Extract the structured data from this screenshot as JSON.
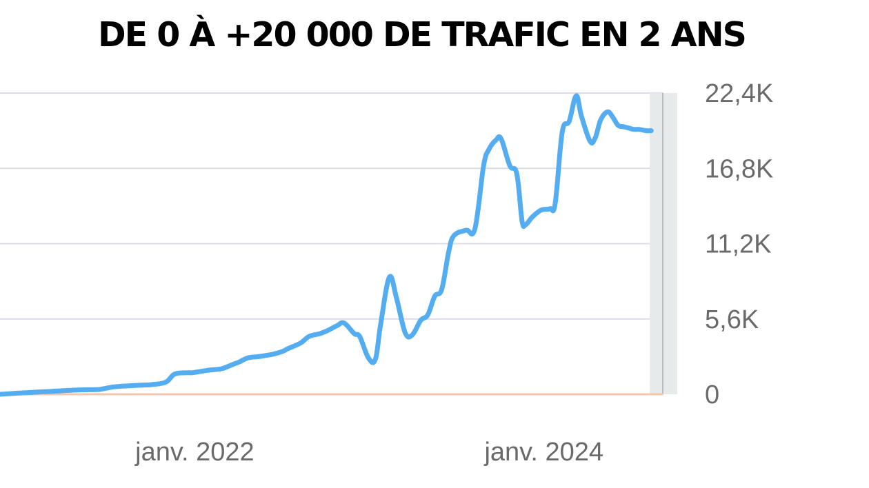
{
  "title": "DE 0 À +20 000 DE TRAFIC EN 2 ANS",
  "colors": {
    "line": "#54adf0",
    "grid": "#dcdce6",
    "baseline": "#f3c7ad",
    "highlight": "#e6eaea",
    "axis_text": "#6a6a6a"
  },
  "chart_data": {
    "type": "line",
    "title": "DE 0 À +20 000 DE TRAFIC EN 2 ANS",
    "xlabel": "",
    "ylabel": "",
    "x_tick_labels": [
      "janv. 2022",
      "janv. 2024"
    ],
    "x_tick_positions": [
      2022.0,
      2024.0
    ],
    "xlim": [
      2020.85,
      2024.65
    ],
    "y_tick_labels": [
      "0",
      "5,6K",
      "11,2K",
      "16,8K",
      "22,4K"
    ],
    "y_tick_values": [
      0,
      5600,
      11200,
      16800,
      22400
    ],
    "ylim": [
      0,
      22400
    ],
    "grid": true,
    "legend": "none",
    "series": [
      {
        "x": [
          2020.85,
          2021.0,
          2021.15,
          2021.3,
          2021.4,
          2021.43,
          2021.5,
          2021.55,
          2021.62,
          2021.66,
          2021.72,
          2021.8,
          2021.85,
          2021.92,
          2021.95,
          2022.0,
          2022.05,
          2022.12,
          2022.18,
          2022.22,
          2022.27,
          2022.33,
          2022.38,
          2022.42,
          2022.47,
          2022.5,
          2022.57,
          2022.62,
          2022.68,
          2022.72,
          2022.78,
          2022.82,
          2022.88,
          2022.91,
          2022.96,
          2023.0,
          2023.03,
          2023.08,
          2023.12,
          2023.17,
          2023.21,
          2023.26,
          2023.3,
          2023.34,
          2023.38,
          2023.42,
          2023.45,
          2023.52,
          2023.57,
          2023.62,
          2023.65,
          2023.69,
          2023.72,
          2023.77,
          2023.81,
          2023.84,
          2023.86,
          2023.9,
          2023.95,
          2024.0,
          2024.03,
          2024.07,
          2024.11,
          2024.15,
          2024.18,
          2024.23,
          2024.26,
          2024.29,
          2024.33,
          2024.36,
          2024.39,
          2024.42,
          2024.45,
          2024.48,
          2024.51,
          2024.55,
          2024.58
        ],
        "y": [
          0,
          120,
          220,
          320,
          350,
          380,
          550,
          600,
          650,
          680,
          720,
          900,
          1500,
          1600,
          1600,
          1700,
          1800,
          1900,
          2200,
          2400,
          2700,
          2800,
          2900,
          3000,
          3200,
          3400,
          3800,
          4300,
          4500,
          4700,
          5100,
          5300,
          4500,
          4300,
          2700,
          2600,
          5200,
          8700,
          7200,
          4600,
          4400,
          5500,
          5900,
          7300,
          7800,
          10600,
          11800,
          12200,
          12300,
          17000,
          18200,
          18900,
          19000,
          17000,
          16400,
          12900,
          12600,
          13200,
          13700,
          13800,
          14200,
          19500,
          20300,
          22200,
          20700,
          18800,
          19100,
          20400,
          21000,
          20600,
          20000,
          19900,
          19800,
          19700,
          19700,
          19600,
          19600
        ]
      }
    ]
  }
}
